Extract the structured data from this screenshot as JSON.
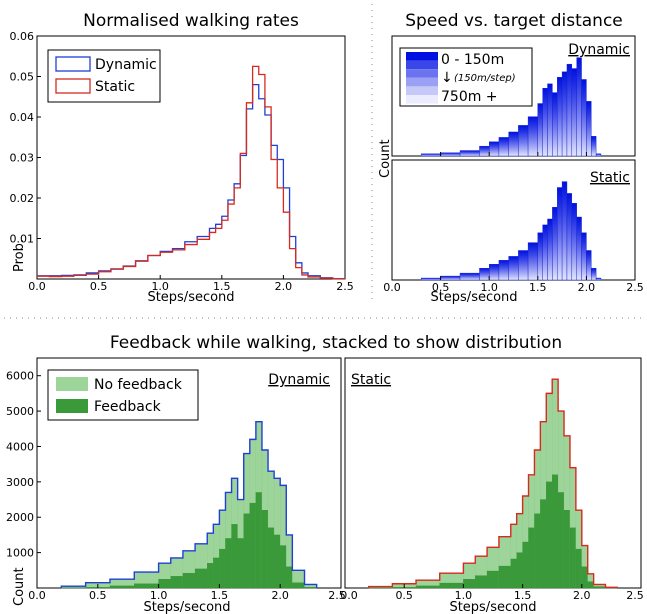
{
  "separators": {
    "horizontal": true,
    "vertical": true
  },
  "chart_data": [
    {
      "id": "walking",
      "type": "line",
      "style": "step-histogram",
      "title": "Normalised walking rates",
      "xlabel": "Steps/second",
      "ylabel": "Prob.",
      "xlim": [
        0,
        2.5
      ],
      "ylim": [
        0,
        0.06
      ],
      "xticks": [
        "0.0",
        "0.5",
        "1.0",
        "1.5",
        "2.0",
        "2.5"
      ],
      "xtick_values": [
        0,
        0.5,
        1.0,
        1.5,
        2.0,
        2.5
      ],
      "yticks": [
        "0.01",
        "0.02",
        "0.03",
        "0.04",
        "0.05",
        "0.06"
      ],
      "ytick_values": [
        0.01,
        0.02,
        0.03,
        0.04,
        0.05,
        0.06
      ],
      "legend": {
        "placement": "top-left"
      },
      "x": [
        0,
        0.1,
        0.2,
        0.3,
        0.4,
        0.5,
        0.6,
        0.7,
        0.8,
        0.9,
        1.0,
        1.1,
        1.2,
        1.3,
        1.4,
        1.45,
        1.5,
        1.55,
        1.6,
        1.65,
        1.7,
        1.75,
        1.8,
        1.85,
        1.9,
        1.95,
        2.0,
        2.05,
        2.1,
        2.15,
        2.2,
        2.3,
        2.4,
        2.5
      ],
      "series": [
        {
          "name": "Dynamic",
          "color": "#1f3fd6",
          "values": [
            0.0008,
            0.0008,
            0.0009,
            0.001,
            0.0015,
            0.002,
            0.0025,
            0.0032,
            0.0045,
            0.0058,
            0.0068,
            0.0075,
            0.0092,
            0.0105,
            0.0125,
            0.0135,
            0.0155,
            0.0195,
            0.0235,
            0.0305,
            0.042,
            0.048,
            0.0445,
            0.0405,
            0.033,
            0.0295,
            0.0225,
            0.0105,
            0.004,
            0.0015,
            0.0008,
            0.0003,
            0.0001,
            0
          ]
        },
        {
          "name": "Static",
          "color": "#d62a1f",
          "values": [
            0.0007,
            0.0006,
            0.0007,
            0.0009,
            0.0012,
            0.0018,
            0.0024,
            0.0031,
            0.0044,
            0.0058,
            0.0066,
            0.0072,
            0.0085,
            0.0098,
            0.0115,
            0.0125,
            0.0145,
            0.0185,
            0.0225,
            0.031,
            0.0435,
            0.0525,
            0.0505,
            0.0425,
            0.0295,
            0.0225,
            0.0165,
            0.0075,
            0.0028,
            0.001,
            0.0005,
            0.0002,
            0.0001,
            0
          ]
        }
      ]
    },
    {
      "id": "distance",
      "type": "bar",
      "style": "stacked-histogram",
      "title": "Speed vs. target distance",
      "xlabel": "Steps/second",
      "ylabel": "Count",
      "xlim": [
        0,
        2.5
      ],
      "xticks": [
        "0.0",
        "0.5",
        "1.0",
        "1.5",
        "2.0",
        "2.5"
      ],
      "xtick_values": [
        0,
        0.5,
        1.0,
        1.5,
        2.0,
        2.5
      ],
      "legend": {
        "placement": "top-left",
        "entries": [
          "0 - 150m",
          "(150m/step)",
          "750m +"
        ],
        "colors": [
          "#0010e0",
          "#3a47e8",
          "#6b73ee",
          "#9aa0f3",
          "#c6c9f8",
          "#ebecfd"
        ]
      },
      "panels": [
        {
          "label": "Dynamic",
          "x": [
            0.3,
            0.5,
            0.7,
            0.9,
            1.0,
            1.1,
            1.2,
            1.3,
            1.4,
            1.5,
            1.55,
            1.6,
            1.65,
            1.7,
            1.75,
            1.8,
            1.85,
            1.9,
            1.95,
            2.0,
            2.05,
            2.1
          ],
          "values": [
            2,
            3,
            5,
            9,
            13,
            17,
            22,
            28,
            36,
            48,
            62,
            66,
            58,
            72,
            77,
            84,
            80,
            90,
            70,
            50,
            18,
            2
          ]
        },
        {
          "label": "Static",
          "x": [
            0.3,
            0.5,
            0.7,
            0.9,
            1.0,
            1.1,
            1.2,
            1.3,
            1.4,
            1.5,
            1.55,
            1.6,
            1.65,
            1.7,
            1.75,
            1.8,
            1.85,
            1.9,
            1.95,
            2.0,
            2.05,
            2.1
          ],
          "values": [
            2,
            4,
            7,
            12,
            16,
            20,
            24,
            30,
            38,
            48,
            56,
            62,
            74,
            94,
            100,
            88,
            78,
            64,
            48,
            30,
            12,
            2
          ]
        }
      ]
    },
    {
      "id": "feedback",
      "type": "bar",
      "style": "stacked-histogram",
      "title": "Feedback while walking, stacked to show distribution",
      "xlabel": "Steps/second",
      "ylabel": "Count",
      "xlim": [
        0,
        2.5
      ],
      "ylim": [
        0,
        6500
      ],
      "xticks": [
        "0.0",
        "0.5",
        "1.0",
        "1.5",
        "2.0",
        "2.5"
      ],
      "xtick_values": [
        0,
        0.5,
        1.0,
        1.5,
        2.0,
        2.5
      ],
      "yticks": [
        "1000",
        "2000",
        "3000",
        "4000",
        "5000",
        "6000"
      ],
      "ytick_values": [
        1000,
        2000,
        3000,
        4000,
        5000,
        6000
      ],
      "legend": {
        "placement": "top-left",
        "entries": [
          "No feedback",
          "Feedback"
        ],
        "colors": [
          "#9dd49a",
          "#3a9a3a"
        ]
      },
      "panels": [
        {
          "label": "Dynamic",
          "outline": "#1f3fd6",
          "x": [
            0.2,
            0.4,
            0.6,
            0.8,
            1.0,
            1.1,
            1.2,
            1.3,
            1.4,
            1.45,
            1.5,
            1.55,
            1.6,
            1.65,
            1.7,
            1.75,
            1.8,
            1.85,
            1.9,
            1.95,
            2.0,
            2.05,
            2.1,
            2.2
          ],
          "total": [
            50,
            150,
            250,
            450,
            700,
            850,
            1050,
            1250,
            1550,
            1800,
            2200,
            2700,
            3100,
            2500,
            3800,
            4200,
            4700,
            3900,
            3300,
            3100,
            2900,
            1500,
            500,
            100
          ],
          "feedback": [
            5,
            20,
            60,
            120,
            250,
            330,
            420,
            540,
            700,
            850,
            1100,
            1400,
            1800,
            1400,
            2100,
            2400,
            2700,
            2200,
            1700,
            1500,
            1200,
            600,
            150,
            20
          ]
        },
        {
          "label": "Static",
          "outline": "#d62a1f",
          "x": [
            0.2,
            0.4,
            0.6,
            0.8,
            1.0,
            1.1,
            1.2,
            1.3,
            1.4,
            1.45,
            1.5,
            1.55,
            1.6,
            1.65,
            1.7,
            1.75,
            1.8,
            1.85,
            1.9,
            1.95,
            2.0,
            2.05,
            2.1,
            2.2
          ],
          "total": [
            40,
            120,
            220,
            420,
            700,
            900,
            1150,
            1450,
            1800,
            2100,
            2600,
            3200,
            3900,
            4700,
            5500,
            5900,
            5000,
            4300,
            3400,
            2200,
            1200,
            400,
            100,
            20
          ],
          "feedback": [
            5,
            20,
            60,
            140,
            250,
            350,
            480,
            620,
            820,
            1000,
            1300,
            1700,
            2100,
            2500,
            3000,
            3200,
            2700,
            2200,
            1700,
            1100,
            600,
            180,
            40,
            5
          ]
        }
      ]
    }
  ]
}
